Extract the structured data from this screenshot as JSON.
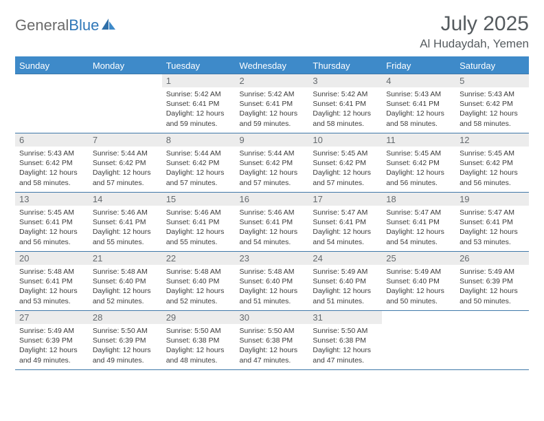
{
  "logo": {
    "general": "General",
    "blue": "Blue"
  },
  "title": "July 2025",
  "location": "Al Hudaydah, Yemen",
  "colors": {
    "header_bg": "#3e8ac9",
    "header_text": "#ffffff",
    "daynum_bg": "#ececec",
    "daynum_text": "#656a6e",
    "border": "#3e77a8",
    "title_color": "#555b5f",
    "logo_gray": "#6a6a6a",
    "logo_blue": "#2f77b8"
  },
  "typography": {
    "title_fontsize": 30,
    "location_fontsize": 17,
    "dayheader_fontsize": 13,
    "daynum_fontsize": 13,
    "cell_fontsize": 10.5
  },
  "day_headers": [
    "Sunday",
    "Monday",
    "Tuesday",
    "Wednesday",
    "Thursday",
    "Friday",
    "Saturday"
  ],
  "weeks": [
    [
      {
        "n": "",
        "sr": "",
        "ss": "",
        "dl": ""
      },
      {
        "n": "",
        "sr": "",
        "ss": "",
        "dl": ""
      },
      {
        "n": "1",
        "sr": "Sunrise: 5:42 AM",
        "ss": "Sunset: 6:41 PM",
        "dl": "Daylight: 12 hours and 59 minutes."
      },
      {
        "n": "2",
        "sr": "Sunrise: 5:42 AM",
        "ss": "Sunset: 6:41 PM",
        "dl": "Daylight: 12 hours and 59 minutes."
      },
      {
        "n": "3",
        "sr": "Sunrise: 5:42 AM",
        "ss": "Sunset: 6:41 PM",
        "dl": "Daylight: 12 hours and 58 minutes."
      },
      {
        "n": "4",
        "sr": "Sunrise: 5:43 AM",
        "ss": "Sunset: 6:41 PM",
        "dl": "Daylight: 12 hours and 58 minutes."
      },
      {
        "n": "5",
        "sr": "Sunrise: 5:43 AM",
        "ss": "Sunset: 6:42 PM",
        "dl": "Daylight: 12 hours and 58 minutes."
      }
    ],
    [
      {
        "n": "6",
        "sr": "Sunrise: 5:43 AM",
        "ss": "Sunset: 6:42 PM",
        "dl": "Daylight: 12 hours and 58 minutes."
      },
      {
        "n": "7",
        "sr": "Sunrise: 5:44 AM",
        "ss": "Sunset: 6:42 PM",
        "dl": "Daylight: 12 hours and 57 minutes."
      },
      {
        "n": "8",
        "sr": "Sunrise: 5:44 AM",
        "ss": "Sunset: 6:42 PM",
        "dl": "Daylight: 12 hours and 57 minutes."
      },
      {
        "n": "9",
        "sr": "Sunrise: 5:44 AM",
        "ss": "Sunset: 6:42 PM",
        "dl": "Daylight: 12 hours and 57 minutes."
      },
      {
        "n": "10",
        "sr": "Sunrise: 5:45 AM",
        "ss": "Sunset: 6:42 PM",
        "dl": "Daylight: 12 hours and 57 minutes."
      },
      {
        "n": "11",
        "sr": "Sunrise: 5:45 AM",
        "ss": "Sunset: 6:42 PM",
        "dl": "Daylight: 12 hours and 56 minutes."
      },
      {
        "n": "12",
        "sr": "Sunrise: 5:45 AM",
        "ss": "Sunset: 6:42 PM",
        "dl": "Daylight: 12 hours and 56 minutes."
      }
    ],
    [
      {
        "n": "13",
        "sr": "Sunrise: 5:45 AM",
        "ss": "Sunset: 6:41 PM",
        "dl": "Daylight: 12 hours and 56 minutes."
      },
      {
        "n": "14",
        "sr": "Sunrise: 5:46 AM",
        "ss": "Sunset: 6:41 PM",
        "dl": "Daylight: 12 hours and 55 minutes."
      },
      {
        "n": "15",
        "sr": "Sunrise: 5:46 AM",
        "ss": "Sunset: 6:41 PM",
        "dl": "Daylight: 12 hours and 55 minutes."
      },
      {
        "n": "16",
        "sr": "Sunrise: 5:46 AM",
        "ss": "Sunset: 6:41 PM",
        "dl": "Daylight: 12 hours and 54 minutes."
      },
      {
        "n": "17",
        "sr": "Sunrise: 5:47 AM",
        "ss": "Sunset: 6:41 PM",
        "dl": "Daylight: 12 hours and 54 minutes."
      },
      {
        "n": "18",
        "sr": "Sunrise: 5:47 AM",
        "ss": "Sunset: 6:41 PM",
        "dl": "Daylight: 12 hours and 54 minutes."
      },
      {
        "n": "19",
        "sr": "Sunrise: 5:47 AM",
        "ss": "Sunset: 6:41 PM",
        "dl": "Daylight: 12 hours and 53 minutes."
      }
    ],
    [
      {
        "n": "20",
        "sr": "Sunrise: 5:48 AM",
        "ss": "Sunset: 6:41 PM",
        "dl": "Daylight: 12 hours and 53 minutes."
      },
      {
        "n": "21",
        "sr": "Sunrise: 5:48 AM",
        "ss": "Sunset: 6:40 PM",
        "dl": "Daylight: 12 hours and 52 minutes."
      },
      {
        "n": "22",
        "sr": "Sunrise: 5:48 AM",
        "ss": "Sunset: 6:40 PM",
        "dl": "Daylight: 12 hours and 52 minutes."
      },
      {
        "n": "23",
        "sr": "Sunrise: 5:48 AM",
        "ss": "Sunset: 6:40 PM",
        "dl": "Daylight: 12 hours and 51 minutes."
      },
      {
        "n": "24",
        "sr": "Sunrise: 5:49 AM",
        "ss": "Sunset: 6:40 PM",
        "dl": "Daylight: 12 hours and 51 minutes."
      },
      {
        "n": "25",
        "sr": "Sunrise: 5:49 AM",
        "ss": "Sunset: 6:40 PM",
        "dl": "Daylight: 12 hours and 50 minutes."
      },
      {
        "n": "26",
        "sr": "Sunrise: 5:49 AM",
        "ss": "Sunset: 6:39 PM",
        "dl": "Daylight: 12 hours and 50 minutes."
      }
    ],
    [
      {
        "n": "27",
        "sr": "Sunrise: 5:49 AM",
        "ss": "Sunset: 6:39 PM",
        "dl": "Daylight: 12 hours and 49 minutes."
      },
      {
        "n": "28",
        "sr": "Sunrise: 5:50 AM",
        "ss": "Sunset: 6:39 PM",
        "dl": "Daylight: 12 hours and 49 minutes."
      },
      {
        "n": "29",
        "sr": "Sunrise: 5:50 AM",
        "ss": "Sunset: 6:38 PM",
        "dl": "Daylight: 12 hours and 48 minutes."
      },
      {
        "n": "30",
        "sr": "Sunrise: 5:50 AM",
        "ss": "Sunset: 6:38 PM",
        "dl": "Daylight: 12 hours and 47 minutes."
      },
      {
        "n": "31",
        "sr": "Sunrise: 5:50 AM",
        "ss": "Sunset: 6:38 PM",
        "dl": "Daylight: 12 hours and 47 minutes."
      },
      {
        "n": "",
        "sr": "",
        "ss": "",
        "dl": ""
      },
      {
        "n": "",
        "sr": "",
        "ss": "",
        "dl": ""
      }
    ]
  ]
}
